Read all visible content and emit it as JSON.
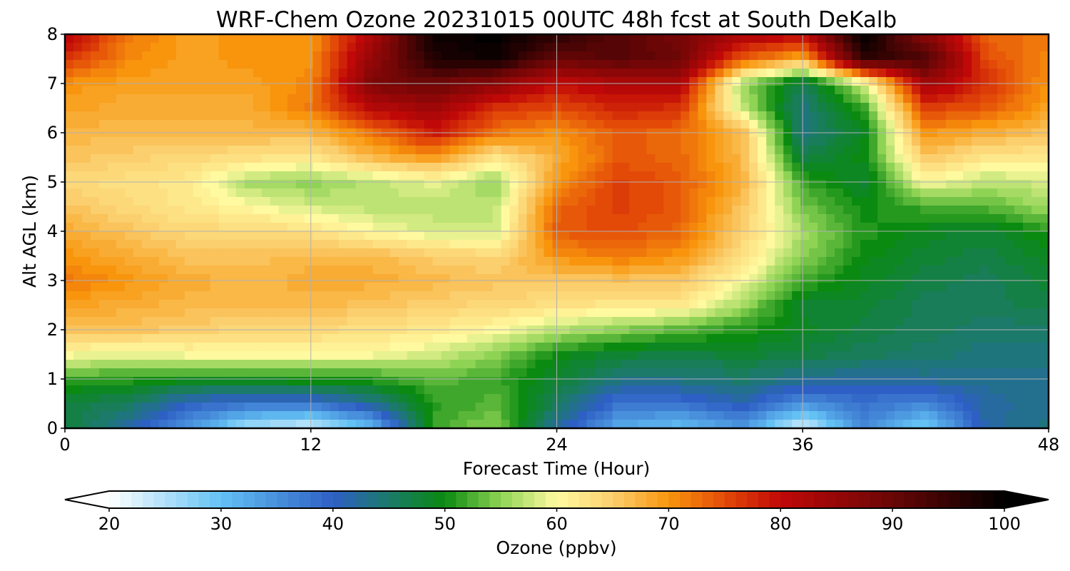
{
  "chart_data": {
    "type": "heatmap",
    "title": "WRF-Chem Ozone  20231015 00UTC 48h fcst at South DeKalb",
    "xlabel": "Forecast Time (Hour)",
    "ylabel": "Alt AGL (km)",
    "xlim": [
      0,
      48
    ],
    "ylim": [
      0,
      8
    ],
    "xticks": [
      0,
      12,
      24,
      36,
      48
    ],
    "yticks": [
      0,
      1,
      2,
      3,
      4,
      5,
      6,
      7,
      8
    ],
    "grid": true,
    "colorbar": {
      "label": "Ozone  (ppbv)",
      "min": 20,
      "max": 100,
      "ticks": [
        20,
        30,
        40,
        50,
        60,
        70,
        80,
        90,
        100
      ],
      "extend": "both",
      "stops": [
        {
          "v": 20,
          "c": "#ffffff"
        },
        {
          "v": 30,
          "c": "#63c1f4"
        },
        {
          "v": 40,
          "c": "#2e5fc4"
        },
        {
          "v": 45,
          "c": "#1b7a6a"
        },
        {
          "v": 50,
          "c": "#0a8a10"
        },
        {
          "v": 55,
          "c": "#8fd355"
        },
        {
          "v": 60,
          "c": "#fffaa0"
        },
        {
          "v": 65,
          "c": "#fbcf6e"
        },
        {
          "v": 70,
          "c": "#f8950d"
        },
        {
          "v": 75,
          "c": "#e34a08"
        },
        {
          "v": 80,
          "c": "#c00808"
        },
        {
          "v": 90,
          "c": "#6a0606"
        },
        {
          "v": 100,
          "c": "#000000"
        }
      ]
    },
    "grid_data": {
      "x": [
        0,
        3,
        6,
        9,
        12,
        15,
        18,
        21,
        24,
        27,
        30,
        33,
        36,
        39,
        42,
        45,
        48
      ],
      "y": [
        0,
        0.5,
        1,
        1.5,
        2,
        2.5,
        3,
        3.5,
        4,
        4.5,
        5,
        5.5,
        6,
        6.5,
        7,
        7.5,
        8
      ],
      "z": [
        [
          48,
          42,
          34,
          25,
          22,
          30,
          52,
          55,
          42,
          32,
          30,
          34,
          22,
          36,
          28,
          42,
          44
        ],
        [
          47,
          46,
          40,
          38,
          38,
          43,
          51,
          53,
          46,
          38,
          38,
          41,
          35,
          38,
          36,
          42,
          43
        ],
        [
          52,
          51,
          50,
          50,
          51,
          51,
          53,
          52,
          48,
          44,
          44,
          45,
          43,
          42,
          43,
          43,
          43
        ],
        [
          60,
          59,
          60,
          60,
          60,
          60,
          58,
          55,
          50,
          48,
          47,
          48,
          47,
          46,
          45,
          44,
          44
        ],
        [
          66,
          66,
          65,
          64,
          64,
          63,
          62,
          60,
          57,
          55,
          53,
          51,
          49,
          47,
          46,
          45,
          45
        ],
        [
          69,
          68,
          67,
          67,
          67,
          66,
          65,
          64,
          63,
          62,
          62,
          56,
          48,
          48,
          46,
          46,
          47
        ],
        [
          72,
          70,
          68,
          67,
          68,
          68,
          67,
          66,
          66,
          66,
          66,
          60,
          52,
          49,
          47,
          46,
          48
        ],
        [
          70,
          68,
          66,
          66,
          67,
          67,
          65,
          64,
          70,
          72,
          70,
          63,
          55,
          50,
          48,
          47,
          49
        ],
        [
          68,
          66,
          64,
          64,
          63,
          60,
          58,
          58,
          74,
          75,
          73,
          65,
          56,
          51,
          49,
          48,
          51
        ],
        [
          66,
          64,
          62,
          60,
          58,
          57,
          57,
          57,
          73,
          76,
          74,
          66,
          54,
          50,
          52,
          53,
          56
        ],
        [
          64,
          63,
          62,
          56,
          55,
          57,
          59,
          55,
          70,
          76,
          74,
          68,
          52,
          48,
          60,
          57,
          58
        ],
        [
          66,
          65,
          64,
          63,
          62,
          67,
          70,
          62,
          68,
          74,
          73,
          67,
          47,
          50,
          66,
          62,
          62
        ],
        [
          67,
          67,
          67,
          67,
          67,
          72,
          79,
          72,
          70,
          74,
          73,
          67,
          44,
          49,
          70,
          68,
          66
        ],
        [
          69,
          68,
          68,
          68,
          72,
          81,
          84,
          77,
          75,
          78,
          77,
          58,
          44,
          52,
          76,
          74,
          69
        ],
        [
          70,
          69,
          69,
          69,
          71,
          88,
          90,
          86,
          80,
          82,
          82,
          56,
          46,
          58,
          84,
          77,
          70
        ],
        [
          77,
          71,
          69,
          70,
          70,
          85,
          97,
          99,
          90,
          92,
          90,
          74,
          68,
          96,
          93,
          75,
          71
        ],
        [
          82,
          72,
          69,
          70,
          70,
          82,
          99,
          100,
          96,
          92,
          88,
          83,
          81,
          100,
          86,
          73,
          72
        ]
      ]
    }
  }
}
